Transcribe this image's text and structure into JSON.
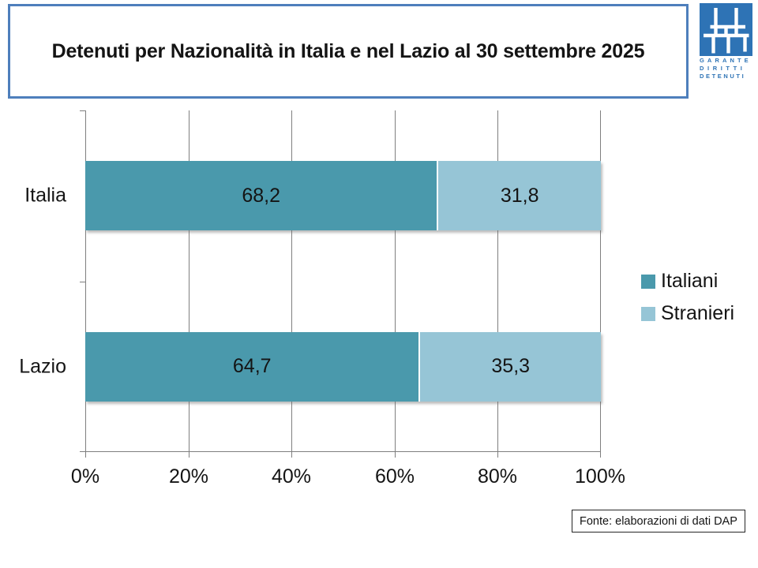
{
  "title": {
    "text": "Detenuti per Nazionalità in Italia e nel Lazio al 30 settembre 2025"
  },
  "logo": {
    "lines": [
      "GARANTE",
      "DIRITTI",
      "DETENUTI"
    ],
    "blue": "#2E73B5"
  },
  "chart_data": {
    "type": "bar",
    "orientation": "horizontal",
    "stacked": true,
    "unit": "%",
    "categories": [
      "Italia",
      "Lazio"
    ],
    "series": [
      {
        "name": "Italiani",
        "color": "#4A99AC",
        "values": [
          68.2,
          64.7
        ],
        "display": [
          "68,2",
          "64,7"
        ]
      },
      {
        "name": "Stranieri",
        "color": "#96C5D6",
        "values": [
          31.8,
          35.3
        ],
        "display": [
          "31,8",
          "35,3"
        ]
      }
    ],
    "x_axis": {
      "min": 0,
      "max": 100,
      "ticks": [
        "0%",
        "20%",
        "40%",
        "60%",
        "80%",
        "100%"
      ]
    },
    "legend": {
      "position": "right",
      "entries": [
        "Italiani",
        "Stranieri"
      ]
    },
    "grid": true
  },
  "footer": {
    "source": "Fonte: elaborazioni di dati DAP"
  },
  "colors": {
    "title_border": "#4E7FBC",
    "grid": "#7f7f7f",
    "logo_blue": "#2E73B5",
    "text": "#141414"
  }
}
